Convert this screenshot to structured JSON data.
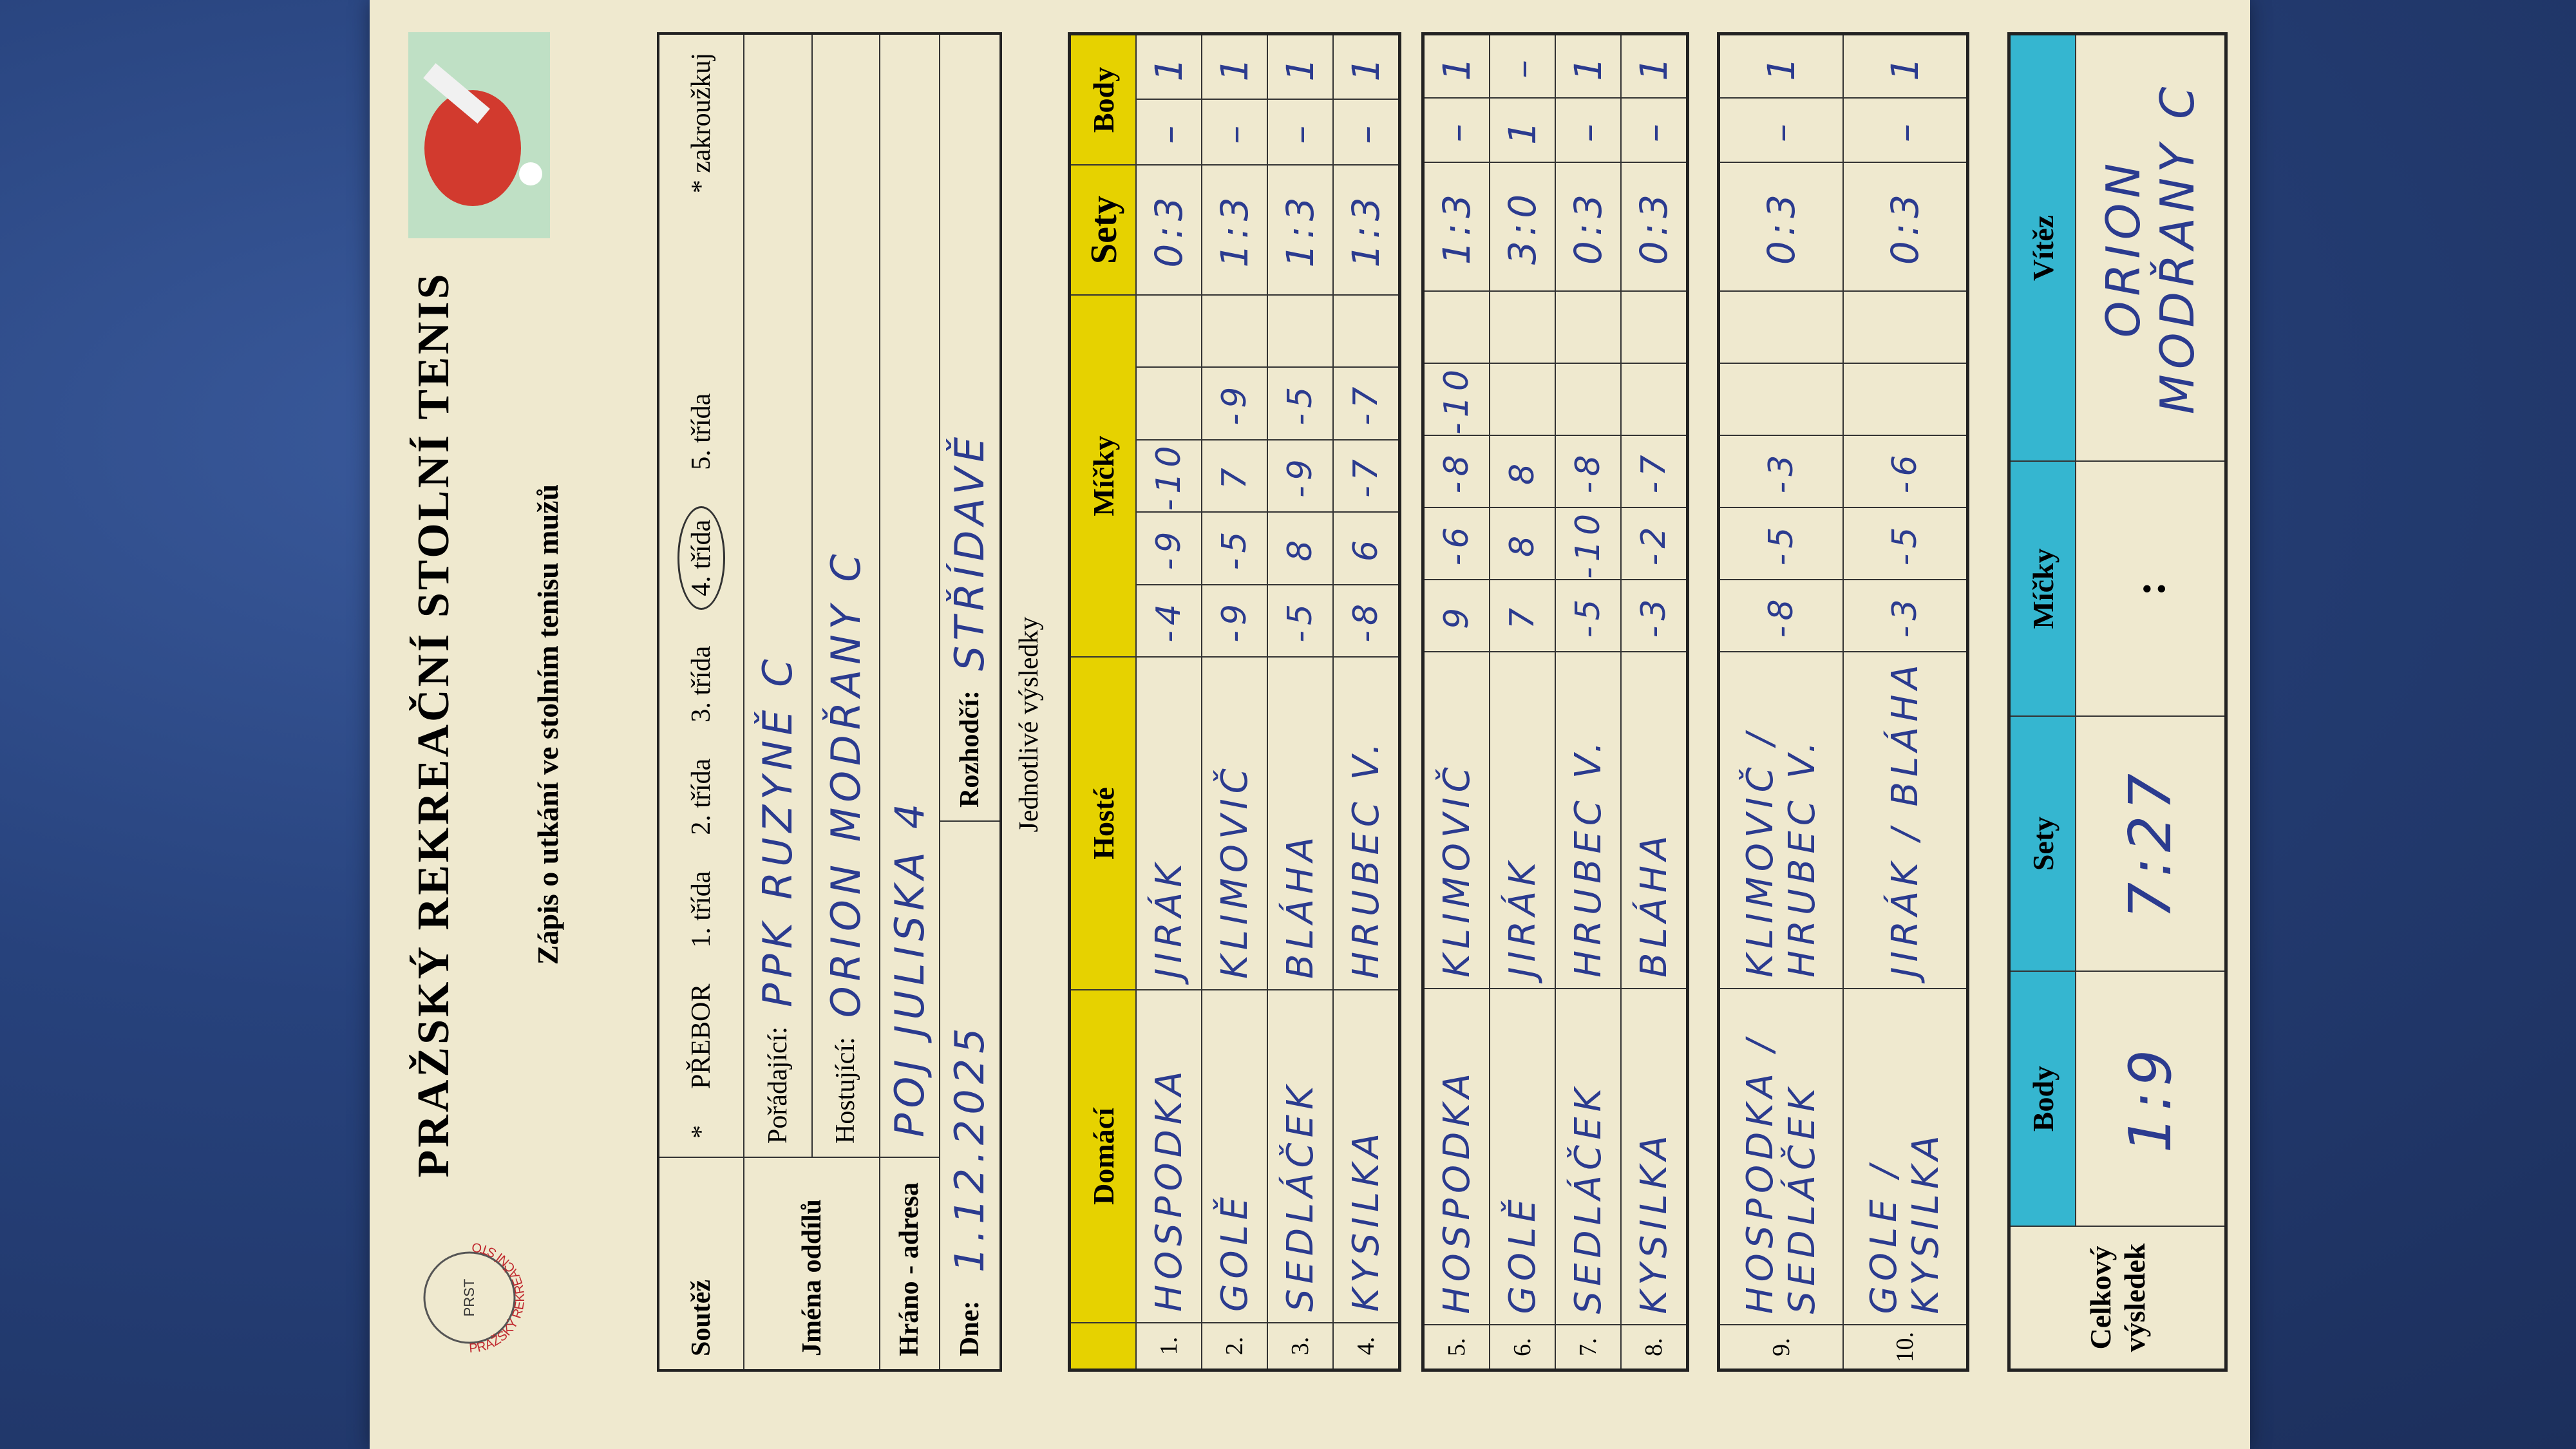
{
  "logo": {
    "text": "PRAŽSKÝ REKREAČNÍ STOLNÍ TENIS",
    "abbr": "PRST"
  },
  "header": {
    "title": "PRAŽSKÝ REKREAČNÍ STOLNÍ TENIS",
    "subtitle": "Zápis o utkání ve stolním tenisu mužů"
  },
  "info": {
    "competition_label": "Soutěž",
    "asterisk": "*",
    "options": [
      "PŘEBOR",
      "1. třída",
      "2. třída",
      "3. třída",
      "4. třída",
      "5. třída"
    ],
    "selected_option": "4. třída",
    "note": "* zakroužkuj",
    "clubs_label": "Jména oddílů",
    "home_label": "Pořádající:",
    "home_value": "PPK RUZYNĚ C",
    "guest_label": "Hostující:",
    "guest_value": "ORION MODŘANY C",
    "address_label": "Hráno - adresa",
    "address_value": "POJ JULISKA 4",
    "date_label": "Dne:",
    "date_value": "1.12.2025",
    "referee_label": "Rozhodčí:",
    "referee_value": "STŘÍDAVĚ"
  },
  "results": {
    "section_label": "Jednotlivé výsledky",
    "headers": {
      "home": "Domácí",
      "guest": "Hosté",
      "balls": "Míčky",
      "sets": "Sety",
      "points": "Body"
    },
    "colors": {
      "header": "#e6d200",
      "total_header": "#35b6d0",
      "ink": "#2b3b8f"
    },
    "rows": [
      {
        "no": "1.",
        "home": "HOSPODKA",
        "guest": "JIRÁK",
        "balls": [
          "-4",
          "-9",
          "-10",
          "",
          ""
        ],
        "sets": "0:3",
        "points": [
          "–",
          "1"
        ]
      },
      {
        "no": "2.",
        "home": "GOLĚ",
        "guest": "KLIMOVIČ",
        "balls": [
          "-9",
          "-5",
          "7",
          "-9",
          ""
        ],
        "sets": "1:3",
        "points": [
          "–",
          "1"
        ]
      },
      {
        "no": "3.",
        "home": "SEDLÁČEK",
        "guest": "BLÁHA",
        "balls": [
          "-5",
          "8",
          "-9",
          "-5",
          ""
        ],
        "sets": "1:3",
        "points": [
          "–",
          "1"
        ]
      },
      {
        "no": "4.",
        "home": "KYSILKA",
        "guest": "HRUBEC V.",
        "balls": [
          "-8",
          "6",
          "-7",
          "-7",
          ""
        ],
        "sets": "1:3",
        "points": [
          "–",
          "1"
        ]
      },
      {
        "no": "5.",
        "home": "HOSPODKA",
        "guest": "KLIMOVIČ",
        "balls": [
          "9",
          "-6",
          "-8",
          "-10",
          ""
        ],
        "sets": "1:3",
        "points": [
          "–",
          "1"
        ]
      },
      {
        "no": "6.",
        "home": "GOLĚ",
        "guest": "JIRÁK",
        "balls": [
          "7",
          "8",
          "8",
          "",
          ""
        ],
        "sets": "3:0",
        "points": [
          "1",
          "–"
        ]
      },
      {
        "no": "7.",
        "home": "SEDLÁČEK",
        "guest": "HRUBEC V.",
        "balls": [
          "-5",
          "-10",
          "-8",
          "",
          ""
        ],
        "sets": "0:3",
        "points": [
          "–",
          "1"
        ]
      },
      {
        "no": "8.",
        "home": "KYSILKA",
        "guest": "BLÁHA",
        "balls": [
          "-3",
          "-2",
          "-7",
          "",
          ""
        ],
        "sets": "0:3",
        "points": [
          "–",
          "1"
        ]
      },
      {
        "no": "9.",
        "home": "HOSPODKA / SEDLÁČEK",
        "guest": "KLIMOVIČ / HRUBEC V.",
        "balls": [
          "-8",
          "-5",
          "-3",
          "",
          ""
        ],
        "sets": "0:3",
        "points": [
          "–",
          "1"
        ]
      },
      {
        "no": "10.",
        "home": "GOLE / KYSILKA",
        "guest": "JIRÁK / BLÁHA",
        "balls": [
          "-3",
          "-5",
          "-6",
          "",
          ""
        ],
        "sets": "0:3",
        "points": [
          "–",
          "1"
        ]
      }
    ]
  },
  "total": {
    "label": "Celkový výsledek",
    "points_label": "Body",
    "points": "1:9",
    "sets_label": "Sety",
    "sets": "7:27",
    "balls_label": "Míčky",
    "balls": ":",
    "winner_label": "Vítěz",
    "winner": "ORION MODŘANY C"
  }
}
